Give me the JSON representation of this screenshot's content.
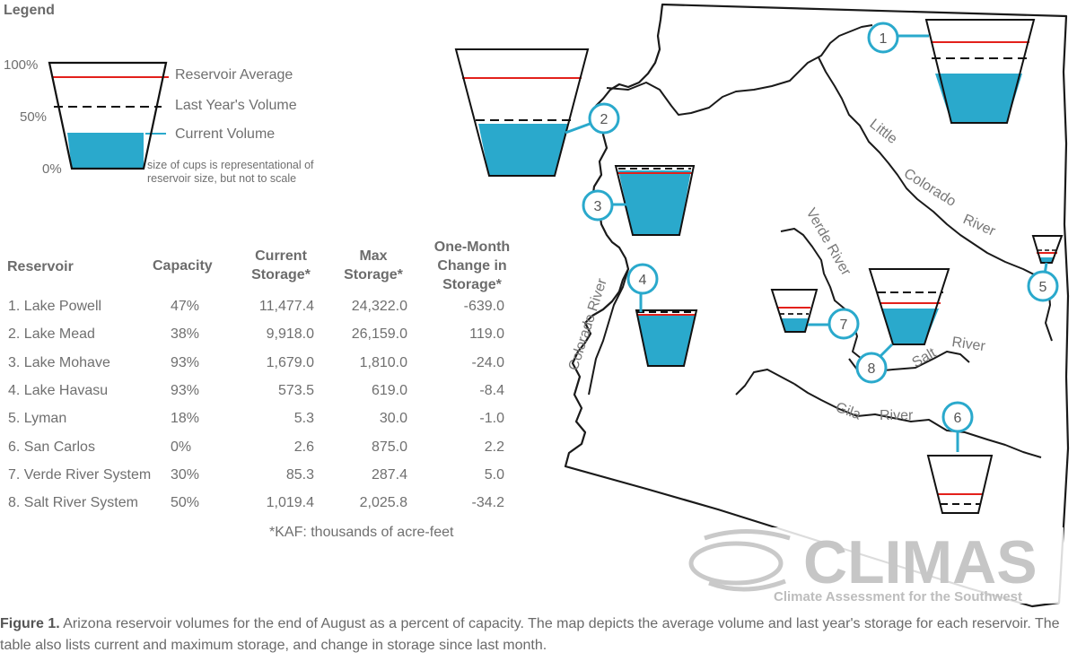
{
  "legend": {
    "title": "Legend",
    "axis": [
      "100%",
      "50%",
      "0%"
    ],
    "reservoir_average": "Reservoir Average",
    "last_year": "Last Year's Volume",
    "current": "Current Volume",
    "note_line1": "size of cups is representational of",
    "note_line2": "reservoir size, but not to scale"
  },
  "table": {
    "headers": {
      "reservoir": "Reservoir",
      "capacity": "Capacity",
      "current_l1": "Current",
      "current_l2": "Storage*",
      "max_l1": "Max",
      "max_l2": "Storage*",
      "change_l1": "One-Month",
      "change_l2": "Change in",
      "change_l3": "Storage*"
    },
    "rows": [
      {
        "name": "1. Lake Powell",
        "capacity": "47%",
        "current": "11,477.4",
        "max": "24,322.0",
        "change": "-639.0"
      },
      {
        "name": "2. Lake Mead",
        "capacity": "38%",
        "current": "9,918.0",
        "max": "26,159.0",
        "change": "119.0"
      },
      {
        "name": "3. Lake Mohave",
        "capacity": "93%",
        "current": "1,679.0",
        "max": "1,810.0",
        "change": "-24.0"
      },
      {
        "name": "4. Lake Havasu",
        "capacity": "93%",
        "current": "573.5",
        "max": "619.0",
        "change": "-8.4"
      },
      {
        "name": "5. Lyman",
        "capacity": "18%",
        "current": "5.3",
        "max": "30.0",
        "change": "-1.0"
      },
      {
        "name": "6. San Carlos",
        "capacity": "0%",
        "current": "2.6",
        "max": "875.0",
        "change": "2.2"
      },
      {
        "name": "7. Verde River System",
        "capacity": "30%",
        "current": "85.3",
        "max": "287.4",
        "change": "5.0"
      },
      {
        "name": "8. Salt River System",
        "capacity": "50%",
        "current": "1,019.4",
        "max": "2,025.8",
        "change": "-34.2"
      }
    ],
    "footnote": "*KAF: thousands of acre-feet"
  },
  "map": {
    "rivers": {
      "little": "Little",
      "colorado_upper": "Colorado",
      "river_upper": "River",
      "verde": "Verde River",
      "colorado_west": "Colorado River",
      "salt": "Salt",
      "salt_river": "River",
      "gila": "Gila",
      "gila_river": "River"
    },
    "markers": [
      "1",
      "2",
      "3",
      "4",
      "5",
      "6",
      "7",
      "8"
    ]
  },
  "logo": {
    "name": "CLIMAS",
    "tagline": "Climate Assessment for the Southwest"
  },
  "caption": {
    "label": "Figure 1.",
    "text": "Arizona reservoir volumes for the end of August as a percent of capacity. The map depicts the average volume and last year's storage for each reservoir. The table also lists current and maximum storage, and change in storage since last month."
  },
  "colors": {
    "current": "#2aa9cc",
    "average": "#e3201b",
    "last_year": "#111111",
    "marker": "#2aa9cc"
  }
}
